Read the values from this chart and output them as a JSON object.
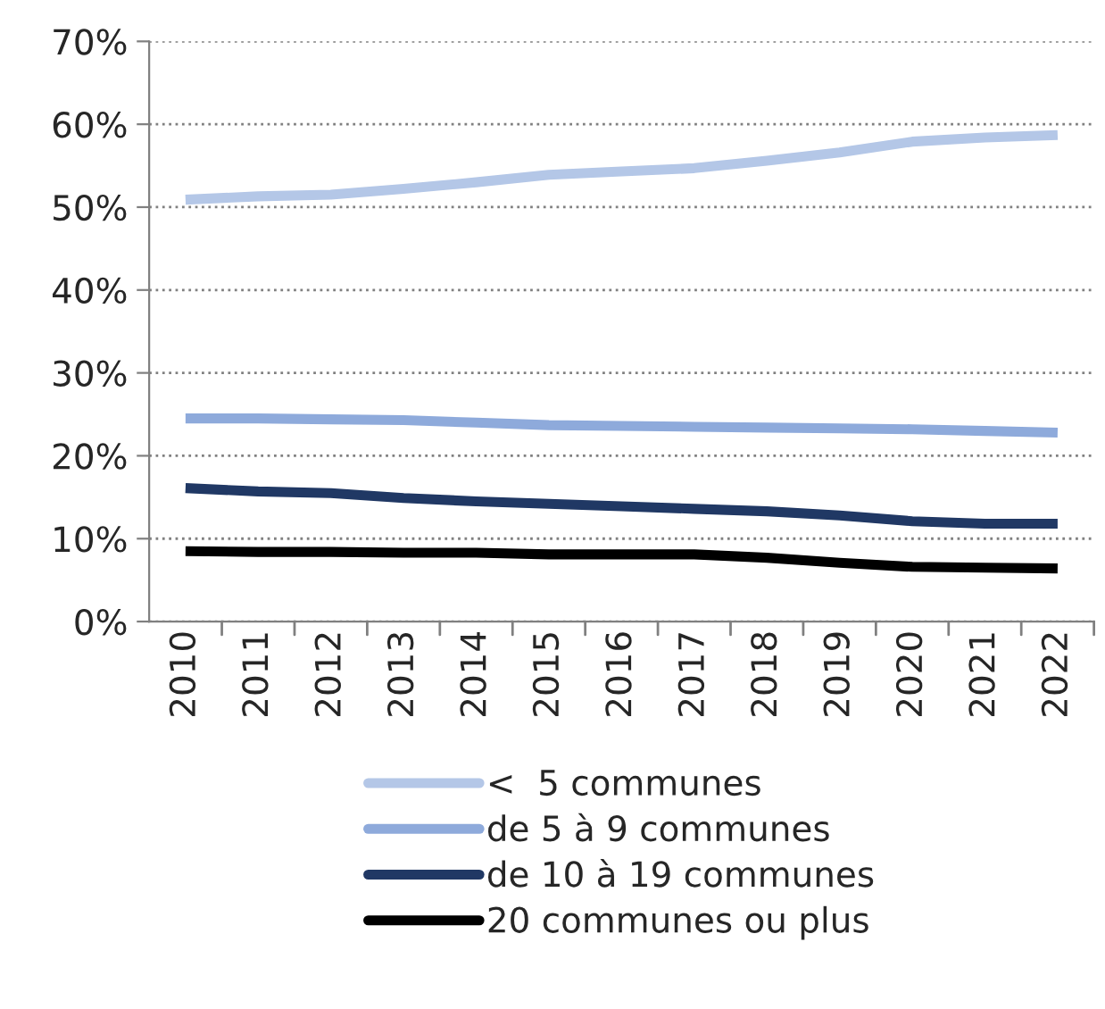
{
  "chart_data": {
    "type": "line",
    "categories": [
      "2010",
      "2011",
      "2012",
      "2013",
      "2014",
      "2015",
      "2016",
      "2017",
      "2018",
      "2019",
      "2020",
      "2021",
      "2022"
    ],
    "series": [
      {
        "name": "<  5 communes",
        "color": "#b4c7e7",
        "values": [
          50.9,
          51.3,
          51.5,
          52.2,
          53.0,
          53.9,
          54.3,
          54.7,
          55.6,
          56.6,
          57.9,
          58.4,
          58.7
        ]
      },
      {
        "name": "de 5 à 9 communes",
        "color": "#8eaadb",
        "values": [
          24.5,
          24.5,
          24.4,
          24.3,
          24.0,
          23.7,
          23.6,
          23.5,
          23.4,
          23.3,
          23.2,
          23.0,
          22.8
        ]
      },
      {
        "name": "de 10 à 19 communes",
        "color": "#203864",
        "values": [
          16.1,
          15.7,
          15.5,
          14.9,
          14.5,
          14.2,
          13.9,
          13.6,
          13.3,
          12.8,
          12.1,
          11.8,
          11.8
        ]
      },
      {
        "name": "20 communes ou plus",
        "color": "#000000",
        "values": [
          8.5,
          8.4,
          8.4,
          8.3,
          8.3,
          8.1,
          8.1,
          8.1,
          7.7,
          7.1,
          6.6,
          6.5,
          6.4
        ]
      }
    ],
    "ylim": [
      0,
      70
    ],
    "yticks": [
      {
        "value": 0,
        "label": "0%"
      },
      {
        "value": 10,
        "label": "10%"
      },
      {
        "value": 20,
        "label": "20%"
      },
      {
        "value": 30,
        "label": "30%"
      },
      {
        "value": 40,
        "label": "40%"
      },
      {
        "value": 50,
        "label": "50%"
      },
      {
        "value": 60,
        "label": "60%"
      },
      {
        "value": 70,
        "label": "70%"
      }
    ],
    "grid": "y",
    "legend": "bottom",
    "marker": "none",
    "line_style": "solid"
  }
}
